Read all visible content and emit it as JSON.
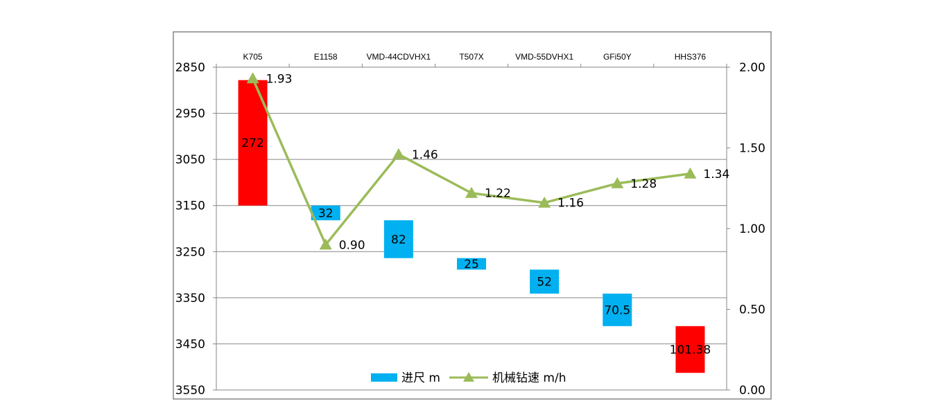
{
  "chart_data": {
    "type": "bar",
    "categories": [
      "K705",
      "E1158",
      "VMD-44CDVHX1",
      "T507X",
      "VMD-55DVHX1",
      "GFi50Y",
      "HHS376"
    ],
    "bars": [
      {
        "start": 2878,
        "footage": 272,
        "label": "272",
        "color": "#ff0000"
      },
      {
        "start": 3150,
        "footage": 32,
        "label": "32",
        "color": "#00b0f0"
      },
      {
        "start": 3182,
        "footage": 82,
        "label": "82",
        "color": "#00b0f0"
      },
      {
        "start": 3264,
        "footage": 25,
        "label": "25",
        "color": "#00b0f0"
      },
      {
        "start": 3289,
        "footage": 52,
        "label": "52",
        "color": "#00b0f0"
      },
      {
        "start": 3341,
        "footage": 70.5,
        "label": "70.5",
        "color": "#00b0f0"
      },
      {
        "start": 3411.5,
        "footage": 101.38,
        "label": "101.38",
        "color": "#ff0000"
      }
    ],
    "series": [
      {
        "name": "进尺 m",
        "values": [
          272,
          32,
          82,
          25,
          52,
          70.5,
          101.38
        ],
        "color": "#00b0f0"
      },
      {
        "name": "机械钻速 m/h",
        "values": [
          1.93,
          0.9,
          1.46,
          1.22,
          1.16,
          1.28,
          1.34
        ],
        "labels": [
          "1.93",
          "0.90",
          "1.46",
          "1.22",
          "1.16",
          "1.28",
          "1.34"
        ],
        "color": "#9bbb59"
      }
    ],
    "y_left": {
      "min": 2850,
      "max": 3550,
      "reversed": true,
      "ticks": [
        "2850",
        "2950",
        "3050",
        "3150",
        "3250",
        "3350",
        "3450",
        "3550"
      ],
      "tick_values": [
        2850,
        2950,
        3050,
        3150,
        3250,
        3350,
        3450,
        3550
      ]
    },
    "y_right": {
      "min": 0,
      "max": 2,
      "ticks": [
        "2.00",
        "1.50",
        "1.00",
        "0.50",
        "0.00"
      ],
      "tick_values": [
        2,
        1.5,
        1,
        0.5,
        0
      ]
    },
    "grid": true,
    "legend_position": "bottom",
    "title": "",
    "xlabel": "",
    "ylabel": ""
  }
}
